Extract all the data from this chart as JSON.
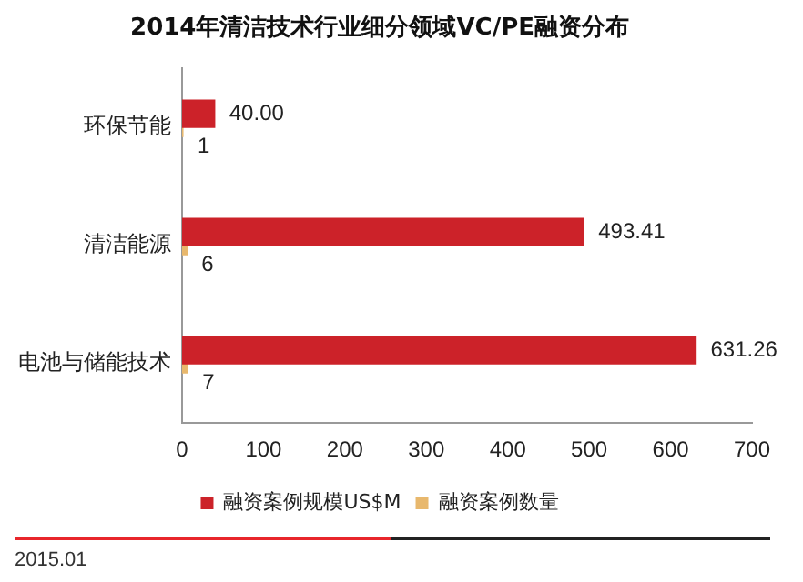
{
  "chart_data": {
    "type": "bar",
    "orientation": "horizontal",
    "title": "2014年清洁技术行业细分领域VC/PE融资分布",
    "categories": [
      "环保节能",
      "清洁能源",
      "电池与储能技术"
    ],
    "series": [
      {
        "name": "融资案例规模US$M",
        "color": "#cc2229",
        "values": [
          40.0,
          493.41,
          631.26
        ],
        "value_labels": [
          "40.00",
          "493.41",
          "631.26"
        ]
      },
      {
        "name": "融资案例数量",
        "color": "#e8b86d",
        "values": [
          1,
          6,
          7
        ],
        "value_labels": [
          "1",
          "6",
          "7"
        ]
      }
    ],
    "xlim": [
      0,
      700
    ],
    "xticks": [
      0,
      100,
      200,
      300,
      400,
      500,
      600,
      700
    ],
    "grid": false,
    "legend": "bottom",
    "annotations": [
      "2015.01"
    ]
  }
}
